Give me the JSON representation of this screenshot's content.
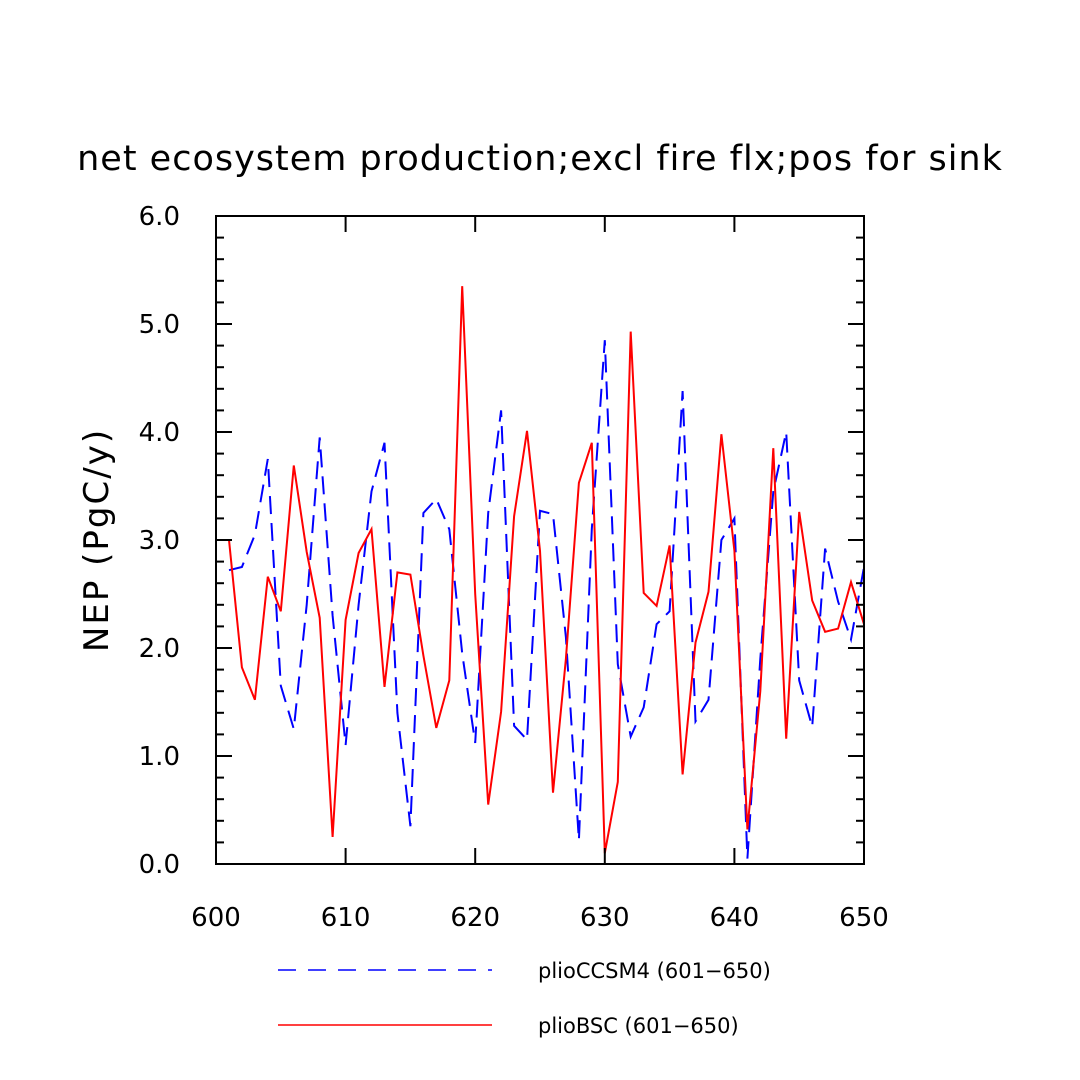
{
  "chart_data": {
    "type": "line",
    "title": "net ecosystem production;excl fire flx;pos for sink",
    "xlabel": "",
    "ylabel": "NEP  (PgC/y)",
    "xlim": [
      600,
      650
    ],
    "ylim": [
      0,
      6
    ],
    "x_ticks": [
      "600",
      "610",
      "620",
      "630",
      "640",
      "650"
    ],
    "y_ticks": [
      "0.0",
      "1.0",
      "2.0",
      "3.0",
      "4.0",
      "5.0",
      "6.0"
    ],
    "grid": false,
    "legend_position": "bottom",
    "series": [
      {
        "name": "plioCCSM4 (601-650)",
        "color": "#0000ff",
        "style": "dashed",
        "x": [
          601,
          602,
          603,
          604,
          605,
          606,
          607,
          608,
          609,
          610,
          611,
          612,
          613,
          614,
          615,
          616,
          617,
          618,
          619,
          620,
          621,
          622,
          623,
          624,
          625,
          626,
          627,
          628,
          629,
          630,
          631,
          632,
          633,
          634,
          635,
          636,
          637,
          638,
          639,
          640,
          641,
          642,
          643,
          644,
          645,
          646,
          647,
          648,
          649,
          650
        ],
        "values": [
          2.72,
          2.75,
          3.05,
          3.75,
          1.65,
          1.25,
          2.4,
          3.95,
          2.3,
          1.1,
          2.4,
          3.45,
          3.9,
          1.4,
          0.35,
          3.25,
          3.38,
          3.1,
          1.95,
          1.12,
          3.25,
          4.2,
          1.28,
          1.15,
          3.27,
          3.24,
          2.1,
          0.22,
          3.1,
          4.85,
          1.85,
          1.18,
          1.45,
          2.22,
          2.34,
          4.38,
          1.32,
          1.52,
          3.0,
          3.2,
          0.05,
          1.9,
          3.45,
          4.0,
          1.7,
          1.27,
          2.92,
          2.43,
          2.08,
          2.75
        ]
      },
      {
        "name": "plioBSC (601-650)",
        "color": "#ff0000",
        "style": "solid",
        "x": [
          601,
          602,
          603,
          604,
          605,
          606,
          607,
          608,
          609,
          610,
          611,
          612,
          613,
          614,
          615,
          616,
          617,
          618,
          619,
          620,
          621,
          622,
          623,
          624,
          625,
          626,
          627,
          628,
          629,
          630,
          631,
          632,
          633,
          634,
          635,
          636,
          637,
          638,
          639,
          640,
          641,
          642,
          643,
          644,
          645,
          646,
          647,
          648,
          649,
          650
        ],
        "values": [
          3.0,
          1.82,
          1.52,
          2.66,
          2.34,
          3.69,
          2.89,
          2.28,
          0.25,
          2.26,
          2.88,
          3.1,
          1.64,
          2.7,
          2.68,
          1.93,
          1.26,
          1.7,
          5.35,
          2.5,
          0.55,
          1.41,
          3.22,
          4.01,
          2.9,
          0.66,
          1.9,
          3.53,
          3.9,
          0.1,
          0.76,
          4.93,
          2.51,
          2.39,
          2.95,
          0.83,
          2.05,
          2.52,
          3.98,
          2.9,
          0.32,
          1.6,
          3.85,
          1.16,
          3.26,
          2.44,
          2.15,
          2.18,
          2.61,
          2.22
        ]
      }
    ]
  }
}
